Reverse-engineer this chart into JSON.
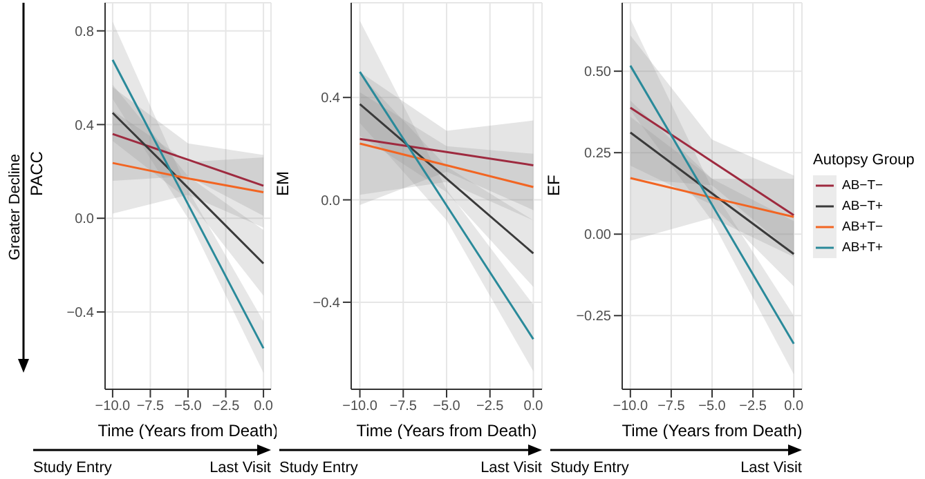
{
  "chart_data": [
    {
      "type": "line",
      "ylabel": "PACC",
      "xlabel": "Time (Years from Death)",
      "x": [
        -10,
        -5,
        0
      ],
      "xlim": [
        -10.5,
        0.5
      ],
      "xticks": [
        {
          "value": -10,
          "label": "−10.0"
        },
        {
          "value": -7.5,
          "label": "−7.5"
        },
        {
          "value": -5,
          "label": "−5.0"
        },
        {
          "value": -2.5,
          "label": "−2.5"
        },
        {
          "value": 0,
          "label": "0.0"
        }
      ],
      "ylim": [
        -0.73,
        0.92
      ],
      "yticks": [
        {
          "value": -0.4,
          "label": "−0.4"
        },
        {
          "value": 0,
          "label": "0.0"
        },
        {
          "value": 0.4,
          "label": "0.4"
        },
        {
          "value": 0.8,
          "label": "0.8"
        }
      ],
      "grid": true,
      "legend": false,
      "annotations": [
        "Greater Decline",
        "Study Entry",
        "Last Visit"
      ],
      "series": [
        {
          "color": "#9e2a3f",
          "values": [
            0.36,
            0.25,
            0.139
          ],
          "lower": [
            0.16,
            0.18,
            0.01
          ],
          "upper": [
            0.56,
            0.32,
            0.27
          ]
        },
        {
          "color": "#3a3a3a",
          "values": [
            0.45,
            0.13,
            -0.193
          ],
          "lower": [
            0.33,
            0.08,
            -0.33
          ],
          "upper": [
            0.57,
            0.18,
            -0.05
          ]
        },
        {
          "color": "#f26522",
          "values": [
            0.236,
            0.17,
            0.111
          ],
          "lower": [
            0.02,
            0.1,
            -0.04
          ],
          "upper": [
            0.46,
            0.24,
            0.26
          ]
        },
        {
          "color": "#2a8a9a",
          "values": [
            0.676,
            0.06,
            -0.555
          ],
          "lower": [
            0.51,
            0,
            -0.66
          ],
          "upper": [
            0.84,
            0.12,
            -0.44
          ]
        }
      ]
    },
    {
      "type": "line",
      "ylabel": "EM",
      "xlabel": "Time (Years from Death)",
      "x": [
        -10,
        -5,
        0
      ],
      "xlim": [
        -10.5,
        0.5
      ],
      "xticks": [
        {
          "value": -10,
          "label": "−10.0"
        },
        {
          "value": -7.5,
          "label": "−7.5"
        },
        {
          "value": -5,
          "label": "−5.0"
        },
        {
          "value": -2.5,
          "label": "−2.5"
        },
        {
          "value": 0,
          "label": "0.0"
        }
      ],
      "ylim": [
        -0.74,
        0.77
      ],
      "yticks": [
        {
          "value": -0.4,
          "label": "−0.4"
        },
        {
          "value": 0,
          "label": "0.0"
        },
        {
          "value": 0.4,
          "label": "0.4"
        }
      ],
      "grid": true,
      "legend": false,
      "annotations": [
        "Study Entry",
        "Last Visit"
      ],
      "series": [
        {
          "color": "#9e2a3f",
          "values": [
            0.238,
            0.187,
            0.135
          ],
          "lower": [
            -0.02,
            0.11,
            -0.04
          ],
          "upper": [
            0.5,
            0.27,
            0.31
          ]
        },
        {
          "color": "#3a3a3a",
          "values": [
            0.374,
            0.083,
            -0.209
          ],
          "lower": [
            0.25,
            0.03,
            -0.34
          ],
          "upper": [
            0.49,
            0.13,
            -0.08
          ]
        },
        {
          "color": "#f26522",
          "values": [
            0.22,
            0.135,
            0.05
          ],
          "lower": [
            0.02,
            0.07,
            -0.08
          ],
          "upper": [
            0.42,
            0.21,
            0.18
          ]
        },
        {
          "color": "#2a8a9a",
          "values": [
            0.5,
            -0.022,
            -0.544
          ],
          "lower": [
            0.3,
            -0.08,
            -0.67
          ],
          "upper": [
            0.7,
            0.04,
            -0.41
          ]
        }
      ]
    },
    {
      "type": "line",
      "ylabel": "EF",
      "xlabel": "Time (Years from Death)",
      "x": [
        -10,
        -5,
        0
      ],
      "xlim": [
        -10.5,
        0.5
      ],
      "xticks": [
        {
          "value": -10,
          "label": "−10.0"
        },
        {
          "value": -7.5,
          "label": "−7.5"
        },
        {
          "value": -5,
          "label": "−5.0"
        },
        {
          "value": -2.5,
          "label": "−2.5"
        },
        {
          "value": 0,
          "label": "0.0"
        }
      ],
      "ylim": [
        -0.476,
        0.71
      ],
      "yticks": [
        {
          "value": -0.25,
          "label": "−0.25"
        },
        {
          "value": 0,
          "label": "0.00"
        },
        {
          "value": 0.25,
          "label": "0.25"
        },
        {
          "value": 0.5,
          "label": "0.50"
        }
      ],
      "grid": true,
      "legend": "right",
      "legend_title": "Autopsy Group",
      "annotations": [
        "Study Entry",
        "Last Visit"
      ],
      "series": [
        {
          "name": "AB−T−",
          "color": "#9e2a3f",
          "values": [
            0.388,
            0.223,
            0.058
          ],
          "lower": [
            0.17,
            0.15,
            -0.06
          ],
          "upper": [
            0.61,
            0.29,
            0.18
          ]
        },
        {
          "name": "AB−T+",
          "color": "#3a3a3a",
          "values": [
            0.312,
            0.125,
            -0.061
          ],
          "lower": [
            0.21,
            0.09,
            -0.16
          ],
          "upper": [
            0.41,
            0.17,
            0.04
          ]
        },
        {
          "name": "AB+T−",
          "color": "#f26522",
          "values": [
            0.172,
            0.112,
            0.053
          ],
          "lower": [
            -0.02,
            0.05,
            -0.07
          ],
          "upper": [
            0.36,
            0.17,
            0.17
          ]
        },
        {
          "name": "AB+T+",
          "color": "#2a8a9a",
          "values": [
            0.517,
            0.09,
            -0.336
          ],
          "lower": [
            0.38,
            0.04,
            -0.43
          ],
          "upper": [
            0.66,
            0.14,
            -0.25
          ]
        }
      ]
    }
  ]
}
